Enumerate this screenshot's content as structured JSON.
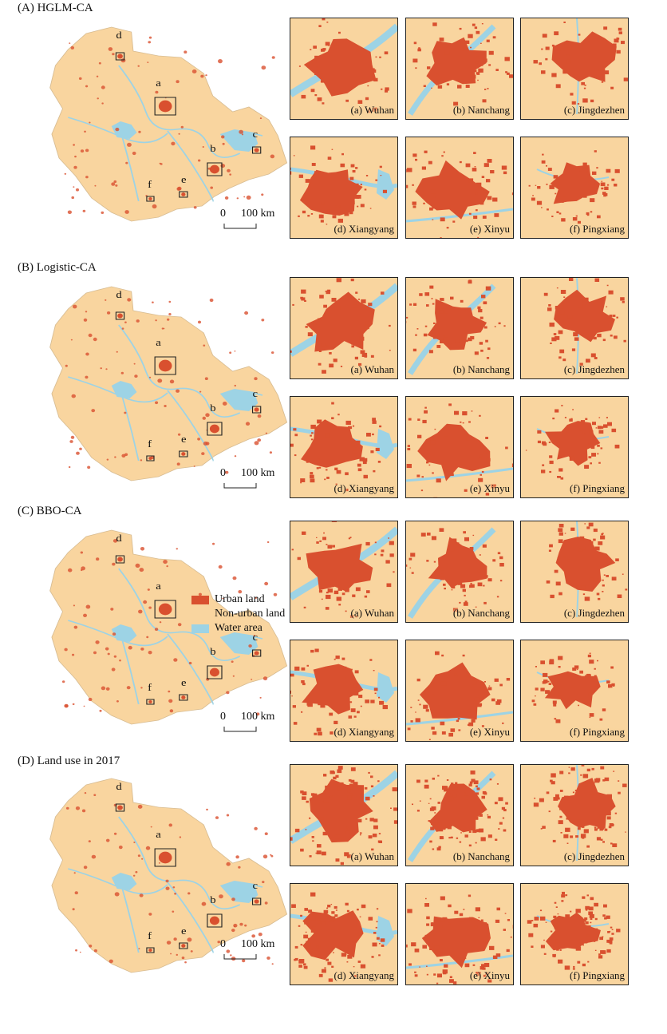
{
  "panels": [
    {
      "title": "(A) HGLM-CA"
    },
    {
      "title": "(B) Logistic-CA"
    },
    {
      "title": "(C) BBO-CA"
    },
    {
      "title": "(D) Land use in 2017"
    }
  ],
  "cities": [
    {
      "label": "(a) Wuhan"
    },
    {
      "label": "(b) Nanchang"
    },
    {
      "label": "(c) Jingdezhen"
    },
    {
      "label": "(d) Xiangyang"
    },
    {
      "label": "(e) Xinyu"
    },
    {
      "label": "(f) Pingxiang"
    }
  ],
  "overview_markers": [
    "a",
    "b",
    "c",
    "d",
    "e",
    "f"
  ],
  "scale": {
    "zero": "0",
    "length": "100 km"
  },
  "legend": [
    {
      "label": "Urban land",
      "color": "#d9502f"
    },
    {
      "label": "Non-urban land",
      "color": "#f9d59f"
    },
    {
      "label": "Water area",
      "color": "#9dd3e5"
    }
  ],
  "colors": {
    "urban": "#d9502f",
    "non_urban": "#f9d59f",
    "water": "#9dd3e5",
    "border": "#222222"
  }
}
